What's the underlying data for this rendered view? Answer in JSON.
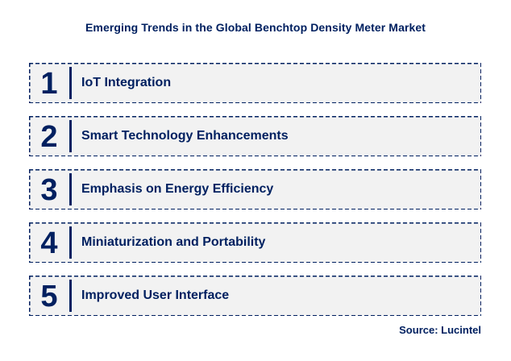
{
  "page": {
    "title": "Emerging Trends in the Global Benchtop Density Meter Market",
    "source": "Source: Lucintel"
  },
  "trends": [
    {
      "number": "1",
      "label": "IoT Integration"
    },
    {
      "number": "2",
      "label": "Smart Technology Enhancements"
    },
    {
      "number": "3",
      "label": "Emphasis on Energy Efficiency"
    },
    {
      "number": "4",
      "label": "Miniaturization and Portability"
    },
    {
      "number": "5",
      "label": "Improved User Interface"
    }
  ],
  "colors": {
    "navy": "#002060",
    "box_background": "#f2f2f2",
    "page_background": "#ffffff"
  }
}
